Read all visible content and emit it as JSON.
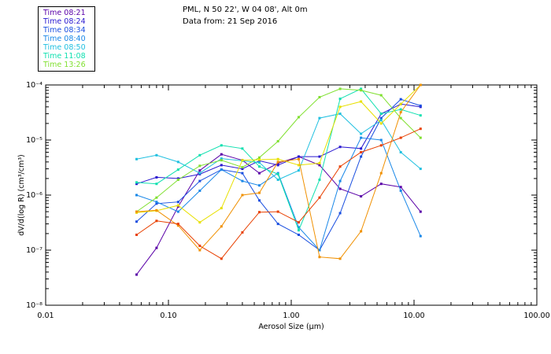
{
  "header": {
    "line1": "PML, N 50 22', W 04 08', Alt 0m",
    "line2": "Data from: 21 Sep 2016"
  },
  "colors": [
    "#5a00a8",
    "#2a18d0",
    "#1a4fe0",
    "#1a88e8",
    "#20c0e0",
    "#10e0b0",
    "#80e030",
    "#e8e000",
    "#f09000",
    "#e84000"
  ],
  "chart_data": {
    "type": "line",
    "xscale": "log",
    "yscale": "log",
    "xlim": [
      0.01,
      100
    ],
    "ylim": [
      1e-08,
      0.0001
    ],
    "x_ticks": [
      "0.01",
      "0.10",
      "1.00",
      "10.00",
      "100.00"
    ],
    "y_ticks": [
      "10⁻⁸",
      "10⁻⁷",
      "10⁻⁶",
      "10⁻⁵",
      "10⁻⁴"
    ],
    "xlabel": "Aerosol Size (μm)",
    "ylabel": "dV/d(log R) (cm³/cm³)",
    "x": [
      0.055,
      0.08,
      0.12,
      0.18,
      0.27,
      0.4,
      0.55,
      0.78,
      1.15,
      1.7,
      2.5,
      3.7,
      5.4,
      7.8,
      11.3
    ],
    "series": [
      {
        "name": "Time 08:21",
        "values": [
          3.6e-08,
          1.1e-07,
          6.2e-07,
          2.8e-06,
          5.5e-06,
          4.3e-06,
          2.5e-06,
          3.8e-06,
          5e-06,
          3.5e-06,
          1.3e-06,
          9.5e-07,
          1.6e-06,
          1.4e-06,
          5e-07
        ]
      },
      {
        "name": "Time 08:24",
        "values": [
          1.6e-06,
          2.1e-06,
          2e-06,
          2.4e-06,
          3.5e-06,
          3e-06,
          4.2e-06,
          3.5e-06,
          5e-06,
          5e-06,
          7.5e-06,
          7e-06,
          3e-05,
          4.5e-05,
          4e-05
        ]
      },
      {
        "name": "Time 08:34",
        "values": [
          3.3e-07,
          7e-07,
          7.5e-07,
          1.8e-06,
          2.9e-06,
          2.5e-06,
          8e-07,
          3e-07,
          1.9e-07,
          1e-07,
          4.7e-07,
          5e-06,
          2.5e-05,
          5.5e-05,
          4.2e-05
        ]
      },
      {
        "name": "Time 08:40",
        "values": [
          1e-06,
          7.5e-07,
          5e-07,
          1.2e-06,
          2.9e-06,
          1.8e-06,
          1.5e-06,
          2.5e-06,
          2.6e-07,
          1e-07,
          1.8e-06,
          1.1e-05,
          1e-05,
          1.2e-06,
          1.8e-07
        ]
      },
      {
        "name": "Time 08:50",
        "values": [
          4.5e-06,
          5.3e-06,
          4e-06,
          2.5e-06,
          4.6e-06,
          4.2e-06,
          3.9e-06,
          1.9e-06,
          2.8e-06,
          2.5e-05,
          3e-05,
          1.3e-05,
          2.3e-05,
          6e-06,
          3e-06
        ]
      },
      {
        "name": "Time 11:08",
        "values": [
          1.7e-06,
          1.6e-06,
          2.9e-06,
          5.3e-06,
          8e-06,
          7e-06,
          3.3e-06,
          2.4e-06,
          2.3e-07,
          1.9e-06,
          5.6e-05,
          8.5e-05,
          3e-05,
          3.6e-05,
          2.8e-05
        ]
      },
      {
        "name": "Time 13:26",
        "values": [
          5e-07,
          9e-07,
          1.9e-06,
          3.4e-06,
          4.3e-06,
          3.2e-06,
          4.8e-06,
          9.5e-06,
          2.6e-05,
          6e-05,
          8.5e-05,
          8e-05,
          6.5e-05,
          2.5e-05,
          1.1e-05
        ]
      },
      {
        "name": "",
        "values": [
          4.8e-07,
          5.2e-07,
          6.5e-07,
          3.2e-07,
          5.8e-07,
          4.3e-06,
          4.4e-06,
          4.5e-06,
          3.5e-06,
          3.8e-06,
          4e-05,
          5e-05,
          2e-05,
          4.5e-05,
          0.0001
        ]
      },
      {
        "name": "",
        "values": [
          5e-07,
          5.3e-07,
          2.8e-07,
          1e-07,
          2.7e-07,
          1e-06,
          1.1e-06,
          4e-06,
          4.5e-06,
          7.5e-08,
          7e-08,
          2.2e-07,
          2.5e-06,
          3.2e-05,
          0.0001
        ]
      },
      {
        "name": "",
        "values": [
          1.9e-07,
          3.4e-07,
          3e-07,
          1.2e-07,
          7e-08,
          2.1e-07,
          4.9e-07,
          5e-07,
          3.2e-07,
          9e-07,
          3.3e-06,
          6e-06,
          8e-06,
          1.1e-05,
          1.6e-05
        ]
      }
    ]
  }
}
